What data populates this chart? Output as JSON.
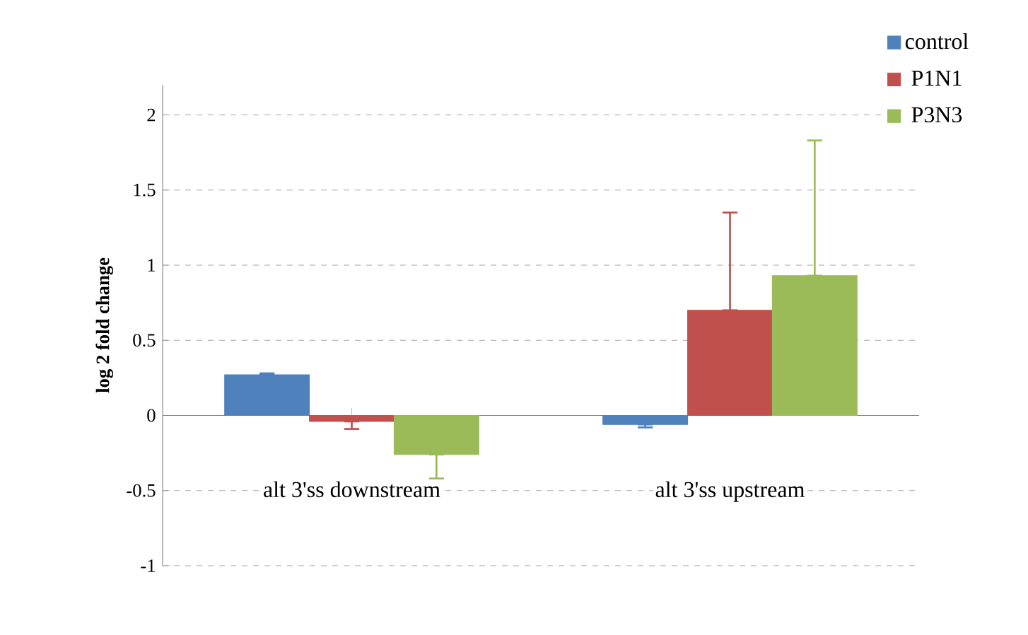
{
  "chart_data": {
    "type": "bar",
    "ylabel": "log 2 fold change",
    "categories": [
      "alt 3'ss downstream",
      "alt 3'ss upstream"
    ],
    "series": [
      {
        "name": "control",
        "color": "#4f81bd",
        "values": [
          0.27,
          -0.06
        ],
        "errors": [
          [
            0.27,
            0.28
          ],
          [
            -0.08,
            -0.06
          ]
        ]
      },
      {
        "name": "P1N1",
        "color": "#c0504d",
        "values": [
          -0.04,
          0.7
        ],
        "errors": [
          [
            -0.09,
            -0.04
          ],
          [
            0.7,
            1.35
          ]
        ]
      },
      {
        "name": "P3N3",
        "color": "#9bbb59",
        "values": [
          -0.26,
          0.93
        ],
        "errors": [
          [
            -0.42,
            -0.26
          ],
          [
            0.93,
            1.83
          ]
        ]
      }
    ],
    "ylim": [
      -1,
      2.2
    ],
    "yticks": [
      -1,
      -0.5,
      0,
      0.5,
      1,
      1.5,
      2
    ],
    "grid": "y",
    "legend": "top right"
  }
}
